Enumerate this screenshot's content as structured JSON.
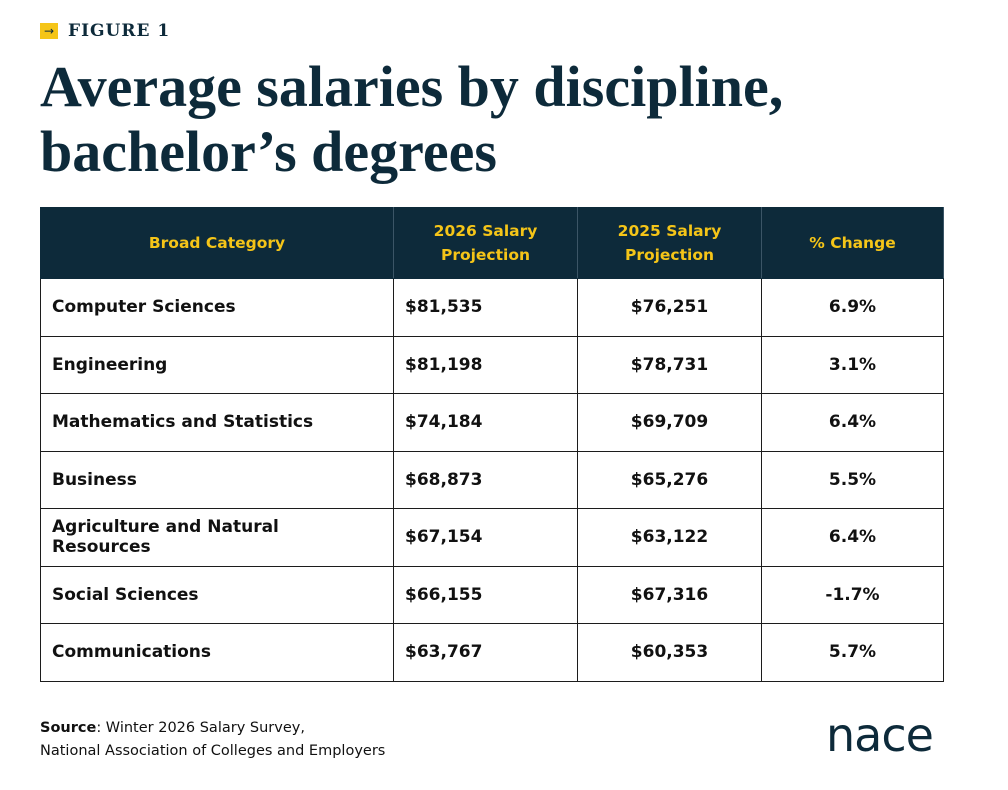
{
  "header": {
    "label": "FIGURE 1",
    "title": "Average salaries by discipline, bachelor’s degrees"
  },
  "table": {
    "columns": [
      "Broad Category",
      "2026 Salary Projection",
      "2025 Salary Projection",
      "% Change"
    ],
    "rows": [
      [
        "Computer Sciences",
        "$81,535",
        "$76,251",
        "6.9%"
      ],
      [
        "Engineering",
        "$81,198",
        "$78,731",
        "3.1%"
      ],
      [
        "Mathematics and Statistics",
        "$74,184",
        "$69,709",
        "6.4%"
      ],
      [
        "Business",
        "$68,873",
        "$65,276",
        "5.5%"
      ],
      [
        "Agriculture and Natural Resources",
        "$67,154",
        "$63,122",
        "6.4%"
      ],
      [
        "Social Sciences",
        "$66,155",
        "$67,316",
        "-1.7%"
      ],
      [
        "Communications",
        "$63,767",
        "$60,353",
        "5.7%"
      ]
    ]
  },
  "footer": {
    "source_label": "Source",
    "source_text": ": Winter 2026 Salary Survey,",
    "source_org": "National Association of Colleges and Employers",
    "logo": "nace"
  }
}
